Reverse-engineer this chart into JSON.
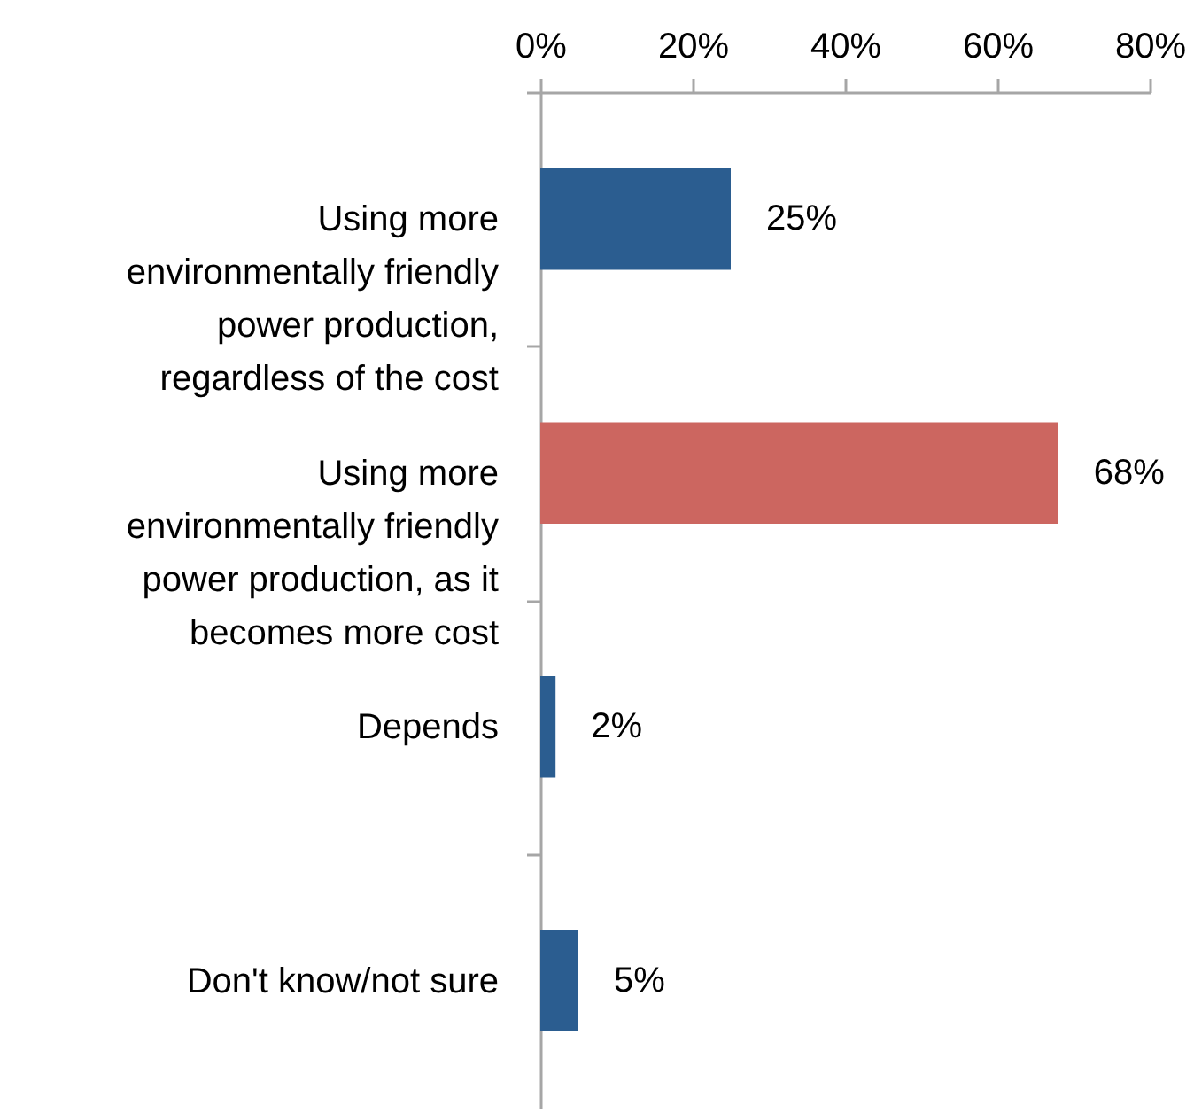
{
  "chart_data": {
    "type": "bar",
    "orientation": "horizontal",
    "categories": [
      "Using more environmentally friendly power production, regardless of the cost",
      "Using more environmentally friendly power production, as it becomes more cost",
      "Depends",
      "Don't know/not sure"
    ],
    "values": [
      25,
      68,
      2,
      5
    ],
    "colors": [
      "#2b5d90",
      "#cc6660",
      "#2b5d90",
      "#2b5d90"
    ],
    "value_labels": [
      "25%",
      "68%",
      "2%",
      "5%"
    ],
    "xlim": [
      0,
      80
    ],
    "xticks": [
      {
        "value": 0,
        "label": "0%"
      },
      {
        "value": 20,
        "label": "20%"
      },
      {
        "value": 40,
        "label": "40%"
      },
      {
        "value": 60,
        "label": "60%"
      },
      {
        "value": 80,
        "label": "80%"
      }
    ],
    "grid": false
  }
}
